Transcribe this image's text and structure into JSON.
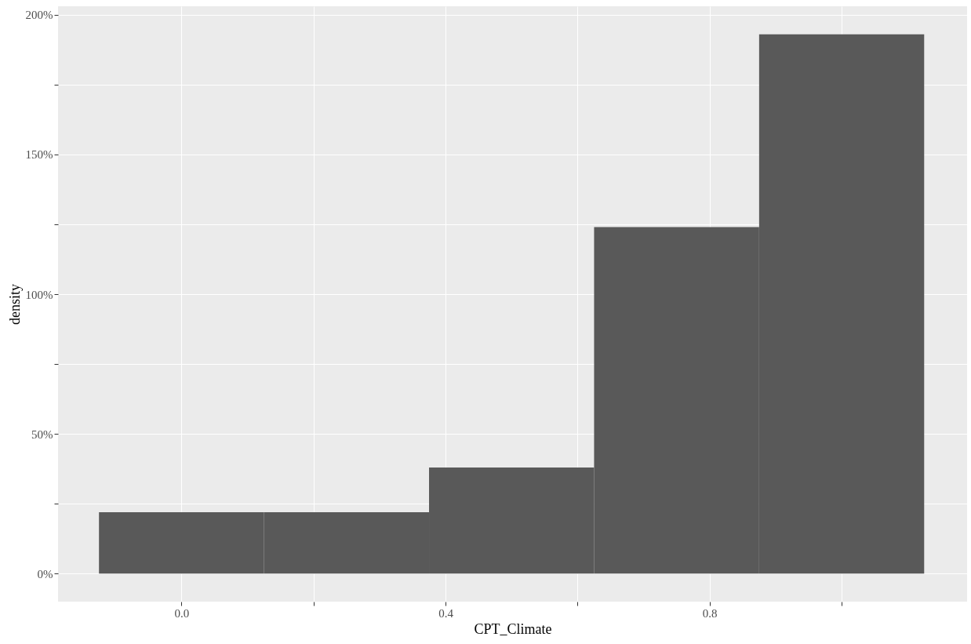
{
  "chart_data": {
    "type": "histogram",
    "xlabel": "CPT_Climate",
    "ylabel": "density",
    "bins": [
      -0.125,
      0.125,
      0.375,
      0.625,
      0.875,
      1.125
    ],
    "values": [
      22,
      22,
      38,
      124,
      193
    ],
    "color": "#595959",
    "xlim": [
      -0.187,
      1.19
    ],
    "ylim": [
      -10,
      203
    ],
    "xticks": [
      {
        "value": 0,
        "label": "0.0"
      },
      {
        "value": 0.2,
        "label": null
      },
      {
        "value": 0.4,
        "label": "0.4"
      },
      {
        "value": 0.6,
        "label": null
      },
      {
        "value": 0.8,
        "label": "0.8"
      },
      {
        "value": 1.0,
        "label": null
      }
    ],
    "yticks": [
      {
        "value": 0,
        "label": "0%"
      },
      {
        "value": 25,
        "label": null
      },
      {
        "value": 50,
        "label": "50%"
      },
      {
        "value": 75,
        "label": null
      },
      {
        "value": 100,
        "label": "100%"
      },
      {
        "value": 125,
        "label": null
      },
      {
        "value": 150,
        "label": "150%"
      },
      {
        "value": 175,
        "label": null
      },
      {
        "value": 200,
        "label": "200%"
      }
    ],
    "grid": true
  }
}
